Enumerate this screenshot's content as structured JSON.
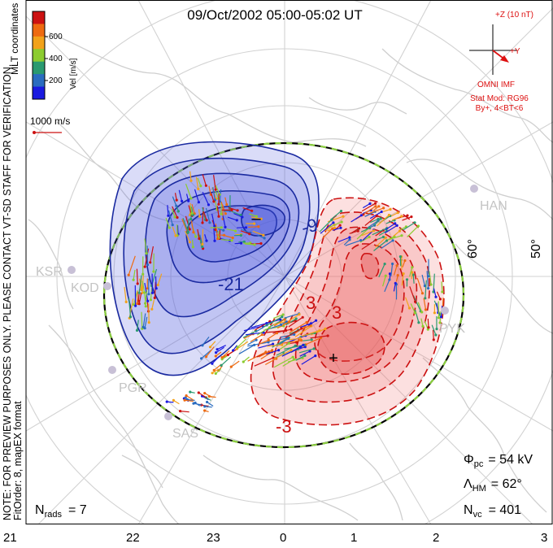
{
  "title": "09/Oct/2002 05:00-05:02 UT",
  "side_note": {
    "coords": "MLT coordinates",
    "preview": "NOTE: FOR PREVIEW PURPOSES ONLY. PLEASE CONTACT VT-SD STAFF FOR VERIFICATION.",
    "fit": "FitOrder: 8, mapEX format"
  },
  "colorbar": {
    "label": "Vel [m/s]",
    "ticks": [
      "600",
      "400",
      "200"
    ],
    "colors": [
      "#cc1111",
      "#ee6a10",
      "#f2a21a",
      "#8ccc30",
      "#2a9a70",
      "#2a6cc0",
      "#1a1ae0"
    ]
  },
  "vector_scale": {
    "label": "1000 m/s"
  },
  "imf": {
    "z_label": "+Z (10 nT)",
    "y_label": "+Y",
    "source": "OMNI IMF",
    "model": "Stat Mod: RG96",
    "condition": "By+, 4<BT<6"
  },
  "stats": {
    "phi": "Φ",
    "phi_sub": "pc",
    "phi_val": "= 54 kV",
    "lambda": "Λ",
    "lambda_sub": "HM",
    "lambda_val": "= 62°",
    "nvc": "N",
    "nvc_sub": "vc",
    "nvc_val": "= 401",
    "nrads": "N",
    "nrads_sub": "rads",
    "nrads_val": "= 7"
  },
  "mlt_labels": [
    "21",
    "22",
    "23",
    "0",
    "1",
    "2",
    "3"
  ],
  "lat_labels": [
    "60°",
    "50°"
  ],
  "contour_labels": {
    "neg1": "-9",
    "neg2": "-21",
    "pos1": "3",
    "pos2": "3",
    "pos3": "-3"
  },
  "stations": [
    "KSR",
    "KOD",
    "PGR",
    "SAS",
    "HAN",
    "PYK"
  ],
  "potential_extrema": {
    "min": "–",
    "max": "+"
  },
  "colors": {
    "negative": "#1a2aa0",
    "negative_fill": "#5560e0",
    "positive": "#cc1111",
    "positive_fill": "#ee6666",
    "grid": "#cccccc",
    "land": "#d5d5d5",
    "hmb": "#8cd040",
    "imf": "#dd1111"
  }
}
